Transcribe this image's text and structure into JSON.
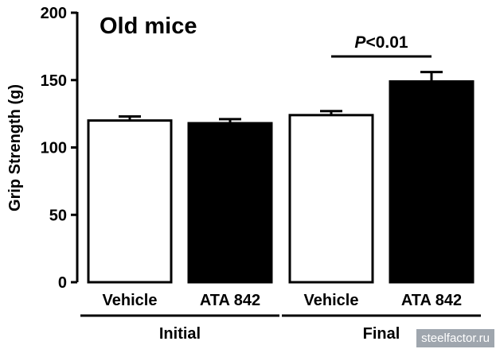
{
  "chart_data": {
    "type": "bar",
    "title": "Old mice",
    "ylabel": "Grip Strength (g)",
    "xlabel": "",
    "ylim": [
      0,
      200
    ],
    "yticks": [
      "0",
      "50",
      "100",
      "150",
      "200"
    ],
    "categories": [
      "Vehicle",
      "ATA 842",
      "Vehicle",
      "ATA 842"
    ],
    "values": [
      120,
      118,
      124,
      149
    ],
    "errors": [
      3,
      3,
      3,
      7
    ],
    "bar_fill": [
      "#ffffff",
      "#000000",
      "#ffffff",
      "#000000"
    ],
    "groups": [
      {
        "label": "Initial",
        "bars": [
          0,
          1
        ]
      },
      {
        "label": "Final",
        "bars": [
          2,
          3
        ]
      }
    ],
    "annotation": {
      "p_italic": "P",
      "text": "<0.01",
      "bars": [
        2,
        3
      ]
    },
    "grid": false
  },
  "watermark": "steelfactor.ru"
}
